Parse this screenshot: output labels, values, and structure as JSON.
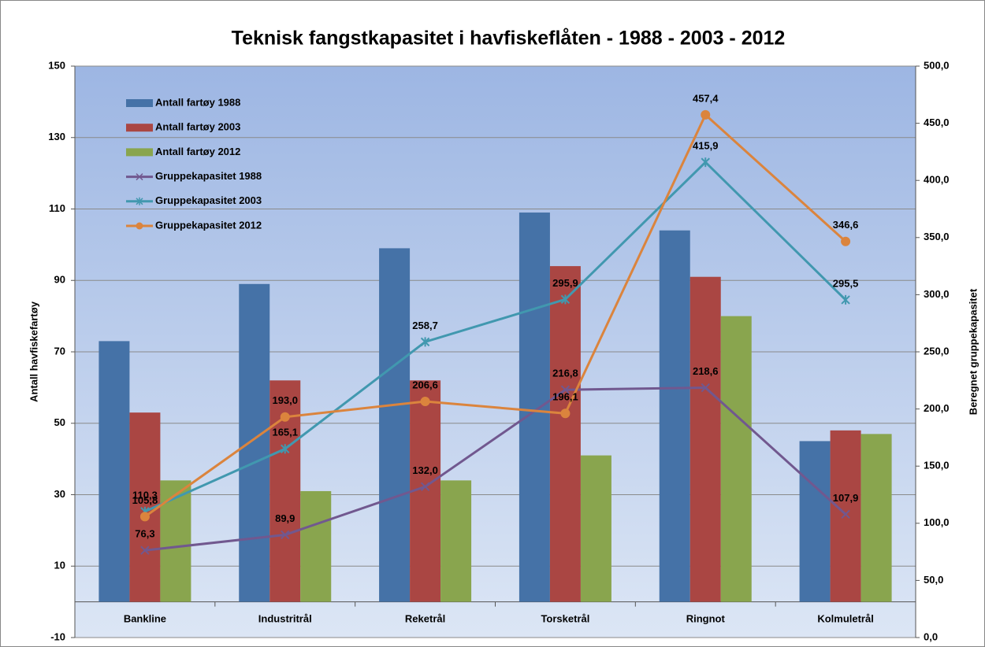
{
  "chart_data": {
    "type": "bar",
    "title": "Teknisk fangstkapasitet  i havfiskeflåten - 1988 - 2003 - 2012",
    "y_label": "Antall havfiskefartøy",
    "y2_label": "Beregnet gruppekapasitet",
    "categories": [
      "Bankline",
      "Industritrål",
      "Reketrål",
      "Torsketrål",
      "Ringnot",
      "Kolmuletrål"
    ],
    "series": [
      {
        "name": "Antall fartøy 1988",
        "type": "bar",
        "color": "#4572a7",
        "values": [
          73,
          89,
          99,
          109,
          104,
          45
        ]
      },
      {
        "name": "Antall fartøy 2003",
        "type": "bar",
        "color": "#aa4643",
        "values": [
          53,
          62,
          62,
          94,
          91,
          48
        ]
      },
      {
        "name": "Antall fartøy 2012",
        "type": "bar",
        "color": "#89a54e",
        "values": [
          34,
          31,
          34,
          41,
          80,
          47
        ]
      },
      {
        "name": "Gruppekapasitet 1988",
        "type": "line",
        "axis": "y2",
        "marker": "x",
        "color": "#71588f",
        "values": [
          76.3,
          89.9,
          132.0,
          216.8,
          218.6,
          107.9
        ],
        "value_labels": [
          "76,3",
          "89,9",
          "132,0",
          "216,8",
          "218,6",
          "107,9"
        ]
      },
      {
        "name": "Gruppekapasitet 2003",
        "type": "line",
        "axis": "y2",
        "marker": "star",
        "color": "#4198af",
        "values": [
          110.3,
          165.1,
          258.7,
          295.9,
          415.9,
          295.5
        ],
        "value_labels": [
          "110,3",
          "165,1",
          "258,7",
          "295,9",
          "415,9",
          "295,5"
        ]
      },
      {
        "name": "Gruppekapasitet 2012",
        "type": "line",
        "axis": "y2",
        "marker": "circle",
        "color": "#db843d",
        "values": [
          105.8,
          193.0,
          206.6,
          196.1,
          457.4,
          346.6
        ],
        "value_labels": [
          "105,8",
          "193,0",
          "206,6",
          "196,1",
          "457,4",
          "346,6"
        ]
      }
    ],
    "ylim": [
      -10,
      150
    ],
    "yticks": [
      -10,
      10,
      30,
      50,
      70,
      90,
      110,
      130,
      150
    ],
    "y2lim": [
      0,
      500
    ],
    "y2ticks": [
      {
        "value": 0,
        "label": "0,0"
      },
      {
        "value": 50,
        "label": "50,0"
      },
      {
        "value": 100,
        "label": "100,0"
      },
      {
        "value": 150,
        "label": "150,0"
      },
      {
        "value": 200,
        "label": "200,0"
      },
      {
        "value": 250,
        "label": "250,0"
      },
      {
        "value": 300,
        "label": "300,0"
      },
      {
        "value": 350,
        "label": "350,0"
      },
      {
        "value": 400,
        "label": "400,0"
      },
      {
        "value": 450,
        "label": "450,0"
      },
      {
        "value": 500,
        "label": "500,0"
      }
    ],
    "grid": true,
    "legend": "top-left"
  }
}
